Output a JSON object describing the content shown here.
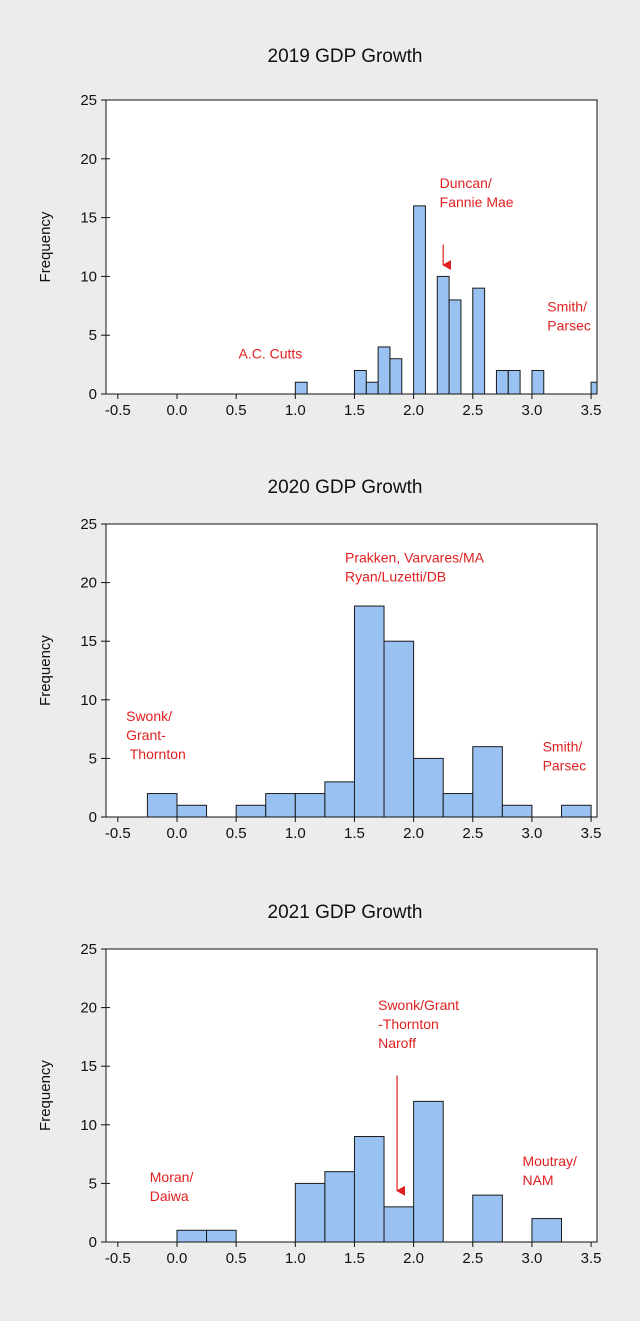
{
  "colors": {
    "bar_fill": "#99c2f2",
    "bar_stroke": "#1a1a1a",
    "annotation": "#e02020",
    "background": "#ececec",
    "plot_bg": "#ffffff"
  },
  "chart_data": [
    {
      "type": "histogram",
      "title": "2019 GDP Growth",
      "xlabel": "",
      "ylabel": "Frequency",
      "xlim": [
        -0.6,
        3.55
      ],
      "ylim": [
        0,
        25
      ],
      "xticks": [
        "-0.5",
        "0.0",
        "0.5",
        "1.0",
        "1.5",
        "2.0",
        "2.5",
        "3.0",
        "3.5"
      ],
      "yticks": [
        "0",
        "5",
        "10",
        "15",
        "20",
        "25"
      ],
      "bins": [
        {
          "x0": 1.0,
          "x1": 1.1,
          "count": 1
        },
        {
          "x0": 1.5,
          "x1": 1.6,
          "count": 2
        },
        {
          "x0": 1.6,
          "x1": 1.7,
          "count": 1
        },
        {
          "x0": 1.7,
          "x1": 1.8,
          "count": 4
        },
        {
          "x0": 1.8,
          "x1": 1.9,
          "count": 3
        },
        {
          "x0": 2.0,
          "x1": 2.1,
          "count": 16
        },
        {
          "x0": 2.2,
          "x1": 2.3,
          "count": 10
        },
        {
          "x0": 2.3,
          "x1": 2.4,
          "count": 8
        },
        {
          "x0": 2.5,
          "x1": 2.6,
          "count": 9
        },
        {
          "x0": 2.7,
          "x1": 2.8,
          "count": 2
        },
        {
          "x0": 2.8,
          "x1": 2.9,
          "count": 2
        },
        {
          "x0": 3.0,
          "x1": 3.1,
          "count": 2
        },
        {
          "x0": 3.5,
          "x1": 3.6,
          "count": 1
        }
      ],
      "annotations": [
        {
          "lines": [
            "Duncan/",
            "Fannie Mae"
          ],
          "x": 2.22,
          "y": 17.5
        },
        {
          "lines": [
            "A.C. Cutts"
          ],
          "x": 0.52,
          "y": 3.0
        },
        {
          "lines": [
            "Smith/",
            "Parsec"
          ],
          "x": 3.13,
          "y": 7.0
        }
      ],
      "arrows": [
        {
          "x": 2.25,
          "y_from": 12.7,
          "y_to": 10.2
        }
      ]
    },
    {
      "type": "histogram",
      "title": "2020 GDP Growth",
      "xlabel": "",
      "ylabel": "Frequency",
      "xlim": [
        -0.6,
        3.55
      ],
      "ylim": [
        0,
        25
      ],
      "xticks": [
        "-0.5",
        "0.0",
        "0.5",
        "1.0",
        "1.5",
        "2.0",
        "2.5",
        "3.0",
        "3.5"
      ],
      "yticks": [
        "0",
        "5",
        "10",
        "15",
        "20",
        "25"
      ],
      "bins": [
        {
          "x0": -0.25,
          "x1": 0.0,
          "count": 2
        },
        {
          "x0": 0.0,
          "x1": 0.25,
          "count": 1
        },
        {
          "x0": 0.5,
          "x1": 0.75,
          "count": 1
        },
        {
          "x0": 0.75,
          "x1": 1.0,
          "count": 2
        },
        {
          "x0": 1.0,
          "x1": 1.25,
          "count": 2
        },
        {
          "x0": 1.25,
          "x1": 1.5,
          "count": 3
        },
        {
          "x0": 1.5,
          "x1": 1.75,
          "count": 18
        },
        {
          "x0": 1.75,
          "x1": 2.0,
          "count": 15
        },
        {
          "x0": 2.0,
          "x1": 2.25,
          "count": 5
        },
        {
          "x0": 2.25,
          "x1": 2.5,
          "count": 2
        },
        {
          "x0": 2.5,
          "x1": 2.75,
          "count": 6
        },
        {
          "x0": 2.75,
          "x1": 3.0,
          "count": 1
        },
        {
          "x0": 3.25,
          "x1": 3.5,
          "count": 1
        }
      ],
      "annotations": [
        {
          "lines": [
            "Prakken, Varvares/MA",
            "Ryan/Luzetti/DB"
          ],
          "x": 1.42,
          "y": 21.7
        },
        {
          "lines": [
            "Swonk/",
            "Grant-",
            " Thornton"
          ],
          "x": -0.43,
          "y": 8.2
        },
        {
          "lines": [
            "Smith/",
            "Parsec"
          ],
          "x": 3.09,
          "y": 5.6
        }
      ],
      "arrows": []
    },
    {
      "type": "histogram",
      "title": "2021 GDP Growth",
      "xlabel": "",
      "ylabel": "Frequency",
      "xlim": [
        -0.6,
        3.55
      ],
      "ylim": [
        0,
        25
      ],
      "xticks": [
        "-0.5",
        "0.0",
        "0.5",
        "1.0",
        "1.5",
        "2.0",
        "2.5",
        "3.0",
        "3.5"
      ],
      "yticks": [
        "0",
        "5",
        "10",
        "15",
        "20",
        "25"
      ],
      "bins": [
        {
          "x0": 0.0,
          "x1": 0.25,
          "count": 1
        },
        {
          "x0": 0.25,
          "x1": 0.5,
          "count": 1
        },
        {
          "x0": 1.0,
          "x1": 1.25,
          "count": 5
        },
        {
          "x0": 1.25,
          "x1": 1.5,
          "count": 6
        },
        {
          "x0": 1.5,
          "x1": 1.75,
          "count": 9
        },
        {
          "x0": 1.75,
          "x1": 2.0,
          "count": 3
        },
        {
          "x0": 2.0,
          "x1": 2.25,
          "count": 12
        },
        {
          "x0": 2.5,
          "x1": 2.75,
          "count": 4
        },
        {
          "x0": 3.0,
          "x1": 3.25,
          "count": 2
        }
      ],
      "annotations": [
        {
          "lines": [
            "Swonk/Grant",
            "-Thornton",
            "Naroff"
          ],
          "x": 1.7,
          "y": 19.8
        },
        {
          "lines": [
            "Moran/",
            "Daiwa"
          ],
          "x": -0.23,
          "y": 5.1
        },
        {
          "lines": [
            "Moutray/",
            "NAM"
          ],
          "x": 2.92,
          "y": 6.5
        }
      ],
      "arrows": [
        {
          "x": 1.86,
          "y_from": 14.2,
          "y_to": 3.6
        }
      ]
    }
  ]
}
